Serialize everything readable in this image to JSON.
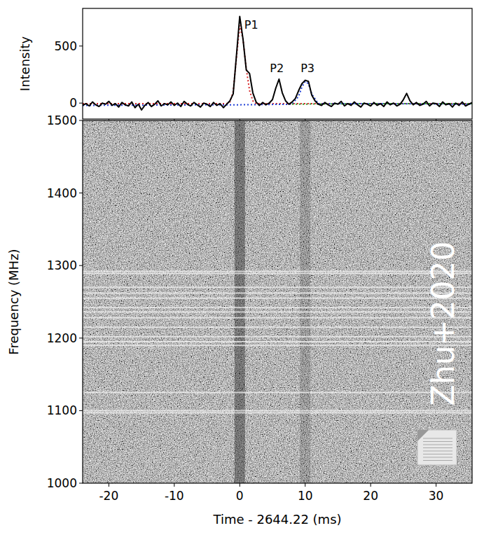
{
  "chart_data": [
    {
      "type": "line",
      "ylabel": "Intensity",
      "xlim": [
        -24,
        35.5
      ],
      "ylim": [
        -140,
        830
      ],
      "xticks": [
        -20,
        -10,
        0,
        10,
        20,
        30
      ],
      "yticks": [
        0,
        500
      ],
      "tick_labels": "y",
      "color": "#000000",
      "x": [
        -24,
        -23.5,
        -23,
        -22.5,
        -22,
        -21.5,
        -21,
        -20.5,
        -20,
        -19.5,
        -19,
        -18.5,
        -18,
        -17.5,
        -17,
        -16.5,
        -16,
        -15.5,
        -15,
        -14.5,
        -14,
        -13.5,
        -13,
        -12.5,
        -12,
        -11.5,
        -11,
        -10.5,
        -10,
        -9.5,
        -9,
        -8.5,
        -8,
        -7.5,
        -7,
        -6.5,
        -6,
        -5.5,
        -5,
        -4.5,
        -4,
        -3.5,
        -3,
        -2.5,
        -2,
        -1.5,
        -1,
        -0.5,
        0,
        0.5,
        1,
        1.5,
        2,
        2.5,
        3,
        3.5,
        4,
        4.5,
        5,
        5.5,
        6,
        6.5,
        7,
        7.5,
        8,
        8.5,
        9,
        9.5,
        10,
        10.5,
        11,
        11.5,
        12,
        12.5,
        13,
        13.5,
        14,
        14.5,
        15,
        15.5,
        16,
        16.5,
        17,
        17.5,
        18,
        18.5,
        19,
        19.5,
        20,
        20.5,
        21,
        21.5,
        22,
        22.5,
        23,
        23.5,
        24,
        24.5,
        25,
        25.5,
        26,
        26.5,
        27,
        27.5,
        28,
        28.5,
        29,
        29.5,
        30,
        30.5,
        31,
        31.5,
        32,
        32.5,
        33,
        33.5,
        34,
        34.5,
        35,
        35.5
      ],
      "values": [
        -20,
        -5,
        -25,
        10,
        -15,
        -30,
        0,
        -10,
        15,
        -20,
        -5,
        -35,
        5,
        -15,
        -25,
        10,
        -40,
        -10,
        -60,
        -20,
        5,
        -30,
        -10,
        20,
        -25,
        -5,
        -15,
        10,
        -20,
        0,
        -30,
        15,
        -10,
        -25,
        5,
        -15,
        -35,
        0,
        -10,
        -30,
        5,
        -20,
        -5,
        -40,
        -10,
        20,
        80,
        420,
        760,
        560,
        290,
        260,
        90,
        10,
        -20,
        5,
        -15,
        0,
        30,
        130,
        210,
        90,
        20,
        -10,
        10,
        40,
        110,
        170,
        200,
        190,
        70,
        20,
        -10,
        -20,
        5,
        -15,
        -30,
        0,
        -10,
        15,
        -25,
        -5,
        -20,
        10,
        -15,
        -35,
        0,
        -10,
        -25,
        5,
        -20,
        -5,
        -30,
        10,
        -15,
        0,
        -25,
        -10,
        30,
        85,
        20,
        -15,
        5,
        -20,
        -10,
        15,
        -25,
        0,
        -5,
        -30,
        10,
        -15,
        -5,
        -35,
        0,
        -20,
        10,
        -25,
        -10,
        5
      ],
      "fits": [
        {
          "color": "#d62728",
          "line_style": "dotted",
          "x": [
            -24,
            -3,
            -2,
            -1.5,
            -1,
            -0.5,
            0,
            0.5,
            1,
            1.5,
            2,
            2.5,
            3,
            35.5
          ],
          "values": [
            -5,
            -5,
            -5,
            10,
            100,
            400,
            680,
            560,
            300,
            110,
            20,
            -5,
            -5,
            -5
          ]
        },
        {
          "color": "#1f3fd6",
          "line_style": "dotted",
          "x": [
            -24,
            0,
            8,
            9,
            9.5,
            10,
            10.5,
            11,
            12,
            20,
            35.5
          ],
          "values": [
            -20,
            -15,
            -10,
            60,
            140,
            190,
            170,
            80,
            -5,
            -5,
            -10
          ]
        },
        {
          "color": "#2ca02c",
          "line_style": "dotted",
          "x": [
            8,
            12,
            20,
            35.5
          ],
          "values": [
            -10,
            -8,
            -5,
            -5
          ]
        }
      ],
      "annotations": [
        {
          "text": "P1",
          "x": 0.7,
          "y": 650
        },
        {
          "text": "P2",
          "x": 4.6,
          "y": 270
        },
        {
          "text": "P3",
          "x": 9.3,
          "y": 270
        }
      ]
    },
    {
      "type": "heatmap",
      "xlabel": "Time - 2644.22 (ms)",
      "ylabel": "Frequency (MHz)",
      "xlim": [
        -24,
        35.5
      ],
      "ylim": [
        1000,
        1500
      ],
      "xticks": [
        -20,
        -10,
        0,
        10,
        20,
        30
      ],
      "yticks": [
        1000,
        1100,
        1200,
        1300,
        1400,
        1500
      ],
      "rfi_lines": [
        1292,
        1289,
        1270,
        1262,
        1255,
        1242,
        1236,
        1228,
        1215,
        1202,
        1195,
        1190,
        1125,
        1100,
        1097
      ],
      "burst_times": [
        0,
        10
      ],
      "annotations": [
        {
          "text": "Zhu+2020"
        }
      ]
    }
  ]
}
